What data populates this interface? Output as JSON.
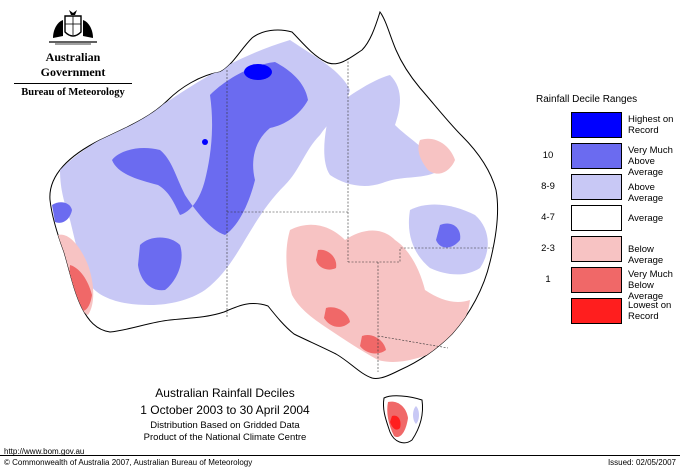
{
  "logo": {
    "government": "Australian Government",
    "bureau": "Bureau of Meteorology",
    "crest_icon": "coat-of-arms-icon"
  },
  "legend": {
    "title": "Rainfall Decile Ranges",
    "items": [
      {
        "range": "",
        "label": "Highest on Record",
        "color": "#0000ff"
      },
      {
        "range": "10",
        "label": "Very Much Above Average",
        "color": "#6b6bf0"
      },
      {
        "range": "8-9",
        "label": "Above Average",
        "color": "#c8c8f5"
      },
      {
        "range": "4-7",
        "label": "Average",
        "color": "#ffffff"
      },
      {
        "range": "2-3",
        "label": "Below Average",
        "color": "#f7c3c3"
      },
      {
        "range": "1",
        "label": "Very Much Below Average",
        "color": "#f06868"
      },
      {
        "range": "",
        "label": "Lowest on Record",
        "color": "#ff1e1e"
      }
    ]
  },
  "map_title": {
    "line1": "Australian Rainfall Deciles",
    "line2": "1 October 2003 to 30 April 2004",
    "line3": "Distribution Based on Gridded Data",
    "line4": "Product of the National Climate Centre"
  },
  "footer": {
    "url": "http://www.bom.gov.au",
    "copyright": "© Commonwealth of Australia 2007, Australian Bureau of Meteorology",
    "issued": "Issued: 02/05/2007"
  }
}
